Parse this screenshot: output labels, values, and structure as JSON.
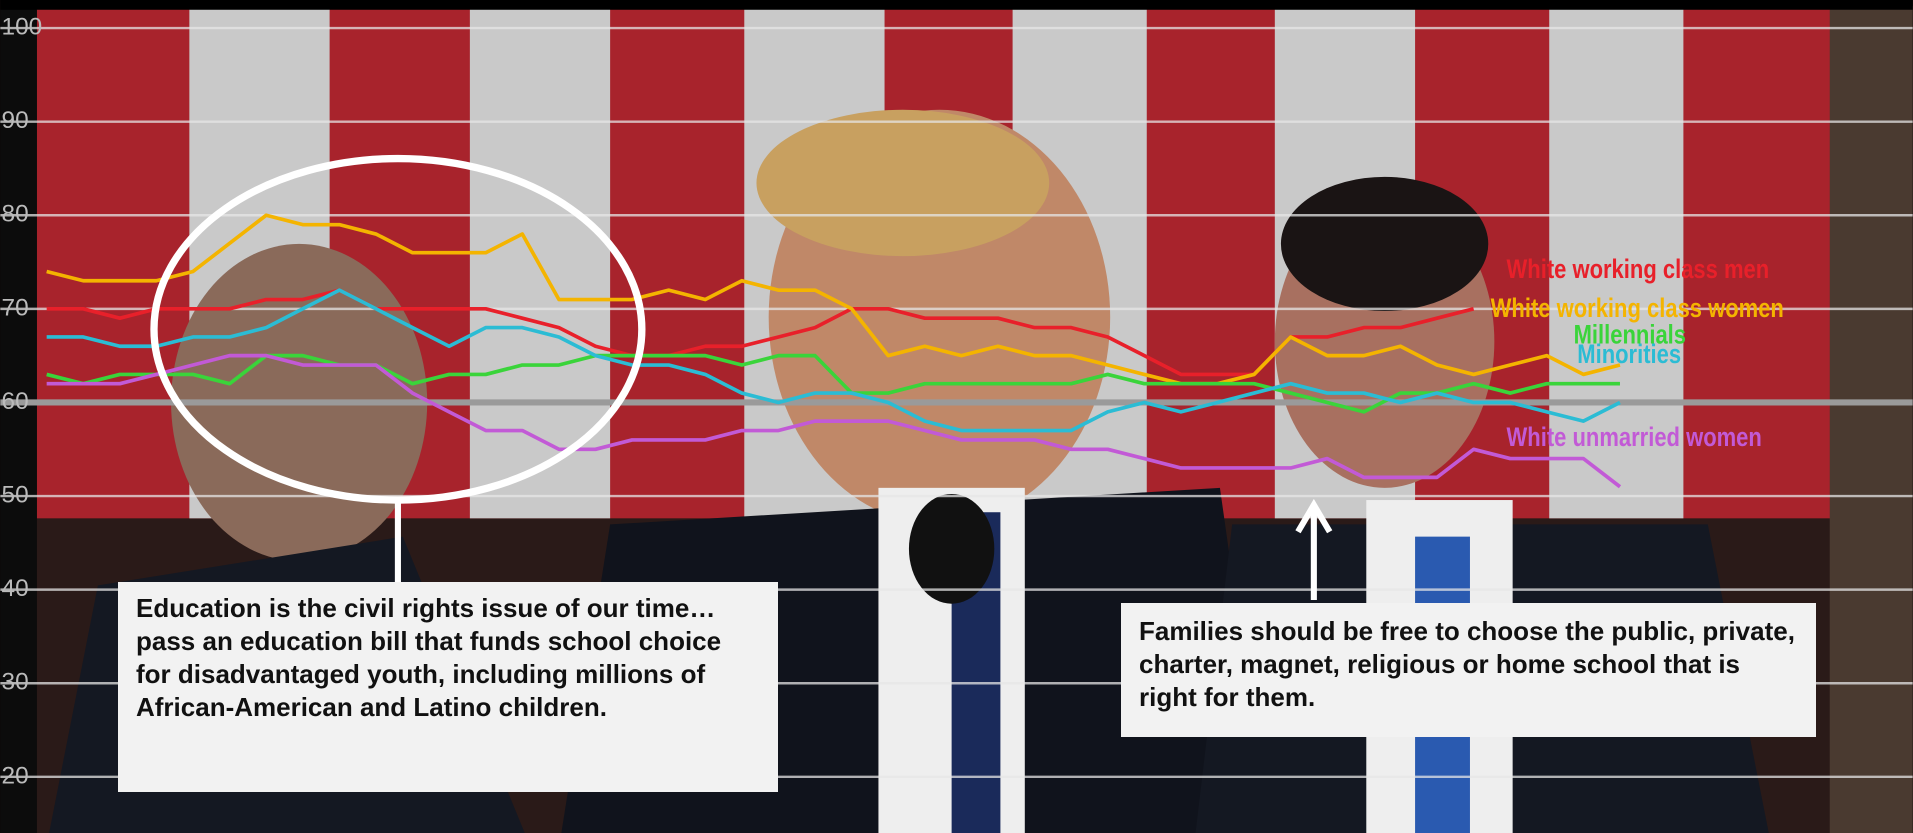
{
  "chart_data": {
    "type": "line",
    "ylim": [
      14,
      103
    ],
    "yticks": [
      20,
      30,
      40,
      50,
      60,
      70,
      80,
      90,
      100
    ],
    "grid": true,
    "series": [
      {
        "name": "White working class men",
        "color": "#e8202a",
        "values": [
          70,
          70,
          69,
          70,
          70,
          70,
          71,
          71,
          72,
          70,
          70,
          70,
          70,
          69,
          68,
          66,
          65,
          65,
          66,
          66,
          67,
          68,
          70,
          70,
          69,
          69,
          69,
          68,
          68,
          67,
          65,
          63,
          63,
          63,
          67,
          67,
          68,
          68,
          69,
          70,
          null,
          null,
          null,
          null
        ]
      },
      {
        "name": "White working class women",
        "color": "#f4b400",
        "values": [
          74,
          73,
          73,
          73,
          74,
          77,
          80,
          79,
          79,
          78,
          76,
          76,
          76,
          78,
          71,
          71,
          71,
          72,
          71,
          73,
          72,
          72,
          70,
          65,
          66,
          65,
          66,
          65,
          65,
          64,
          63,
          62,
          62,
          63,
          67,
          65,
          65,
          66,
          64,
          63,
          64,
          65,
          63,
          64
        ]
      },
      {
        "name": "Millennials",
        "color": "#3ad43a",
        "values": [
          63,
          62,
          63,
          63,
          63,
          62,
          65,
          65,
          64,
          64,
          62,
          63,
          63,
          64,
          64,
          65,
          65,
          65,
          65,
          64,
          65,
          65,
          61,
          61,
          62,
          62,
          62,
          62,
          62,
          63,
          62,
          62,
          62,
          62,
          61,
          60,
          59,
          61,
          61,
          62,
          61,
          62,
          62,
          62
        ]
      },
      {
        "name": "Minorities",
        "color": "#2bbcd4",
        "values": [
          67,
          67,
          66,
          66,
          67,
          67,
          68,
          70,
          72,
          70,
          68,
          66,
          68,
          68,
          67,
          65,
          64,
          64,
          63,
          61,
          60,
          61,
          61,
          60,
          58,
          57,
          57,
          57,
          57,
          59,
          60,
          59,
          60,
          61,
          62,
          61,
          61,
          60,
          61,
          60,
          60,
          59,
          58,
          60
        ]
      },
      {
        "name": "White unmarried women",
        "color": "#c25ad6",
        "values": [
          62,
          62,
          62,
          63,
          64,
          65,
          65,
          64,
          64,
          64,
          61,
          59,
          57,
          57,
          55,
          55,
          56,
          56,
          56,
          57,
          57,
          58,
          58,
          58,
          57,
          56,
          56,
          56,
          55,
          55,
          54,
          53,
          53,
          53,
          53,
          54,
          52,
          52,
          52,
          55,
          54,
          54,
          54,
          51
        ]
      }
    ],
    "annotations": [
      "Education is the civil rights issue of our time…pass an education bill that funds school choice for disadvantaged youth, including millions of African-American and Latino children.",
      "Families should be free to choose the public, private, charter, magnet, religious or home school that is right for them."
    ]
  }
}
